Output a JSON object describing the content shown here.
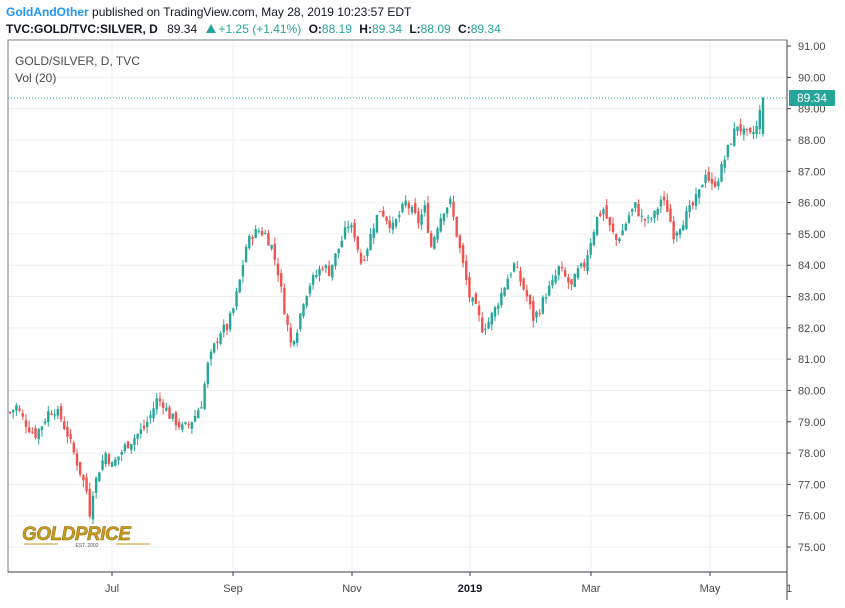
{
  "header": {
    "author": "GoldAndOther",
    "published": "published on TradingView.com, May 28, 2019 10:23:57 EDT",
    "symbol": "TVC:GOLD/TVC:SILVER, D",
    "last": "89.34",
    "change": "+1.25 (+1.41%)",
    "o_label": "O:",
    "o": "88.19",
    "h_label": "H:",
    "h": "89.34",
    "l_label": "L:",
    "l": "88.09",
    "c_label": "C:",
    "c": "89.34"
  },
  "chart_title": "GOLD/SILVER, D, TVC",
  "vol_label": "Vol (20)",
  "price_badge": "89.34",
  "logo": {
    "text": "GOLDPRICE",
    "sub": "EST. 2002"
  },
  "colors": {
    "up": "#26a69a",
    "down": "#ef5350",
    "grid": "#eef0f3",
    "line": "#26a69a"
  },
  "chart_data": {
    "type": "candlestick",
    "title": "GOLD/SILVER, D, TVC",
    "y_ticks": [
      "75.00",
      "76.00",
      "77.00",
      "78.00",
      "79.00",
      "80.00",
      "81.00",
      "82.00",
      "83.00",
      "84.00",
      "85.00",
      "86.00",
      "87.00",
      "88.00",
      "89.00",
      "90.00",
      "91.00"
    ],
    "x_ticks": [
      "Jul",
      "Sep",
      "Nov",
      "2019",
      "Mar",
      "May",
      "1"
    ],
    "ylim": [
      74.1,
      91.2
    ],
    "last_price": 89.34,
    "grid": true,
    "close_path": [
      [
        0,
        79.3
      ],
      [
        2,
        79.5
      ],
      [
        4,
        79.1
      ],
      [
        6,
        78.8
      ],
      [
        8,
        78.6
      ],
      [
        10,
        78.9
      ],
      [
        12,
        79.3
      ],
      [
        14,
        79.4
      ],
      [
        16,
        79.1
      ],
      [
        18,
        78.6
      ],
      [
        20,
        78.0
      ],
      [
        22,
        77.4
      ],
      [
        24,
        76.8
      ],
      [
        25,
        76.1
      ],
      [
        26,
        76.8
      ],
      [
        28,
        77.5
      ],
      [
        30,
        78.0
      ],
      [
        32,
        77.6
      ],
      [
        34,
        77.9
      ],
      [
        36,
        78.2
      ],
      [
        38,
        78.4
      ],
      [
        40,
        78.6
      ],
      [
        42,
        78.8
      ],
      [
        44,
        79.2
      ],
      [
        46,
        79.7
      ],
      [
        48,
        79.6
      ],
      [
        50,
        79.2
      ],
      [
        52,
        79.0
      ],
      [
        54,
        78.8
      ],
      [
        56,
        78.9
      ],
      [
        58,
        79.2
      ],
      [
        60,
        79.6
      ],
      [
        62,
        80.8
      ],
      [
        64,
        81.4
      ],
      [
        66,
        81.9
      ],
      [
        68,
        82.0
      ],
      [
        70,
        82.6
      ],
      [
        72,
        83.5
      ],
      [
        74,
        84.6
      ],
      [
        76,
        85.0
      ],
      [
        78,
        85.1
      ],
      [
        80,
        85.0
      ],
      [
        82,
        84.6
      ],
      [
        84,
        83.8
      ],
      [
        86,
        82.6
      ],
      [
        88,
        81.5
      ],
      [
        90,
        82.0
      ],
      [
        92,
        82.9
      ],
      [
        94,
        83.4
      ],
      [
        96,
        83.7
      ],
      [
        98,
        84.0
      ],
      [
        100,
        83.8
      ],
      [
        102,
        84.3
      ],
      [
        104,
        84.8
      ],
      [
        106,
        85.3
      ],
      [
        108,
        85.0
      ],
      [
        110,
        84.1
      ],
      [
        112,
        84.6
      ],
      [
        114,
        85.3
      ],
      [
        116,
        85.8
      ],
      [
        118,
        85.5
      ],
      [
        120,
        85.2
      ],
      [
        122,
        85.6
      ],
      [
        124,
        86.0
      ],
      [
        126,
        85.7
      ],
      [
        128,
        85.4
      ],
      [
        130,
        85.8
      ],
      [
        132,
        84.6
      ],
      [
        134,
        85.3
      ],
      [
        136,
        85.8
      ],
      [
        138,
        86.0
      ],
      [
        140,
        85.0
      ],
      [
        142,
        84.0
      ],
      [
        144,
        83.0
      ],
      [
        146,
        82.6
      ],
      [
        148,
        82.0
      ],
      [
        150,
        82.2
      ],
      [
        152,
        82.6
      ],
      [
        154,
        83.1
      ],
      [
        156,
        83.6
      ],
      [
        158,
        84.0
      ],
      [
        160,
        83.5
      ],
      [
        162,
        83.0
      ],
      [
        164,
        82.3
      ],
      [
        166,
        82.6
      ],
      [
        168,
        83.1
      ],
      [
        170,
        83.4
      ],
      [
        172,
        83.9
      ],
      [
        174,
        83.6
      ],
      [
        176,
        83.3
      ],
      [
        178,
        83.8
      ],
      [
        180,
        84.0
      ],
      [
        182,
        84.8
      ],
      [
        184,
        85.5
      ],
      [
        186,
        85.8
      ],
      [
        188,
        85.2
      ],
      [
        190,
        84.8
      ],
      [
        192,
        85.1
      ],
      [
        194,
        85.6
      ],
      [
        196,
        85.9
      ],
      [
        198,
        85.5
      ],
      [
        200,
        85.4
      ],
      [
        202,
        85.6
      ],
      [
        204,
        86.1
      ],
      [
        206,
        85.8
      ],
      [
        208,
        85.0
      ],
      [
        210,
        85.3
      ],
      [
        212,
        85.6
      ],
      [
        214,
        85.9
      ],
      [
        216,
        86.3
      ],
      [
        218,
        87.0
      ],
      [
        220,
        86.5
      ],
      [
        222,
        86.8
      ],
      [
        224,
        87.4
      ],
      [
        226,
        88.0
      ],
      [
        228,
        88.5
      ],
      [
        230,
        88.2
      ],
      [
        232,
        88.1
      ],
      [
        234,
        88.4
      ],
      [
        236,
        89.34
      ]
    ]
  }
}
